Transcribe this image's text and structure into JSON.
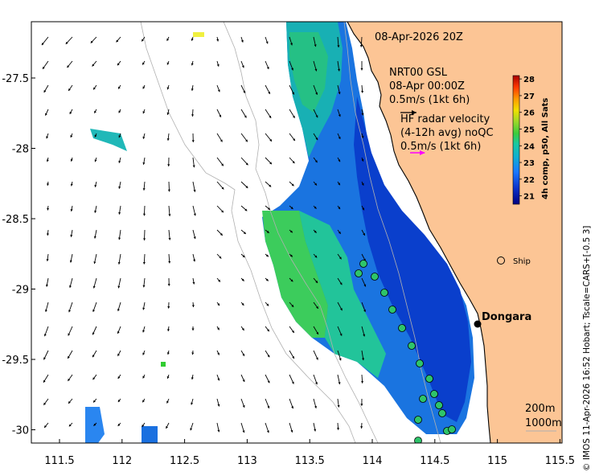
{
  "map": {
    "date_label": "08-Apr-2026 20Z",
    "model": {
      "line1": "NRT00 GSL",
      "line2": "08-Apr 00:00Z",
      "line3": "0.5m/s (1kt 6h)"
    },
    "radar": {
      "line1": "HF radar velocity",
      "line2": "(4-12h avg) noQC",
      "line3": "0.5m/s (1kt 6h)"
    },
    "place_label": "Dongara",
    "ship_label": "Ship",
    "contour_labels": [
      "200m",
      "1000m"
    ],
    "side_caption": "© IMOS 11-Apr-2026 16:52 Hobart; Tscale=CARS+[-0.5 3]",
    "x_ticks": [
      "111.5",
      "112",
      "112.5",
      "113",
      "113.5",
      "114",
      "114.5",
      "115",
      "115.5"
    ],
    "y_ticks": [
      "-27.5",
      "-28",
      "-28.5",
      "-29",
      "-29.5",
      "-30"
    ],
    "colorbar": {
      "title": "4h comp, p50, All Sats",
      "ticks": [
        "21",
        "22",
        "23",
        "24",
        "25",
        "26",
        "27",
        "28"
      ],
      "min": 20.5,
      "max": 28.2
    },
    "colors": {
      "land": "#fcc595",
      "ocean": "#ffffff",
      "coast": "#000000",
      "model_arrow": "#000000",
      "radar_arrow": "#ff00ff",
      "contour": "#b0b0b0"
    }
  }
}
